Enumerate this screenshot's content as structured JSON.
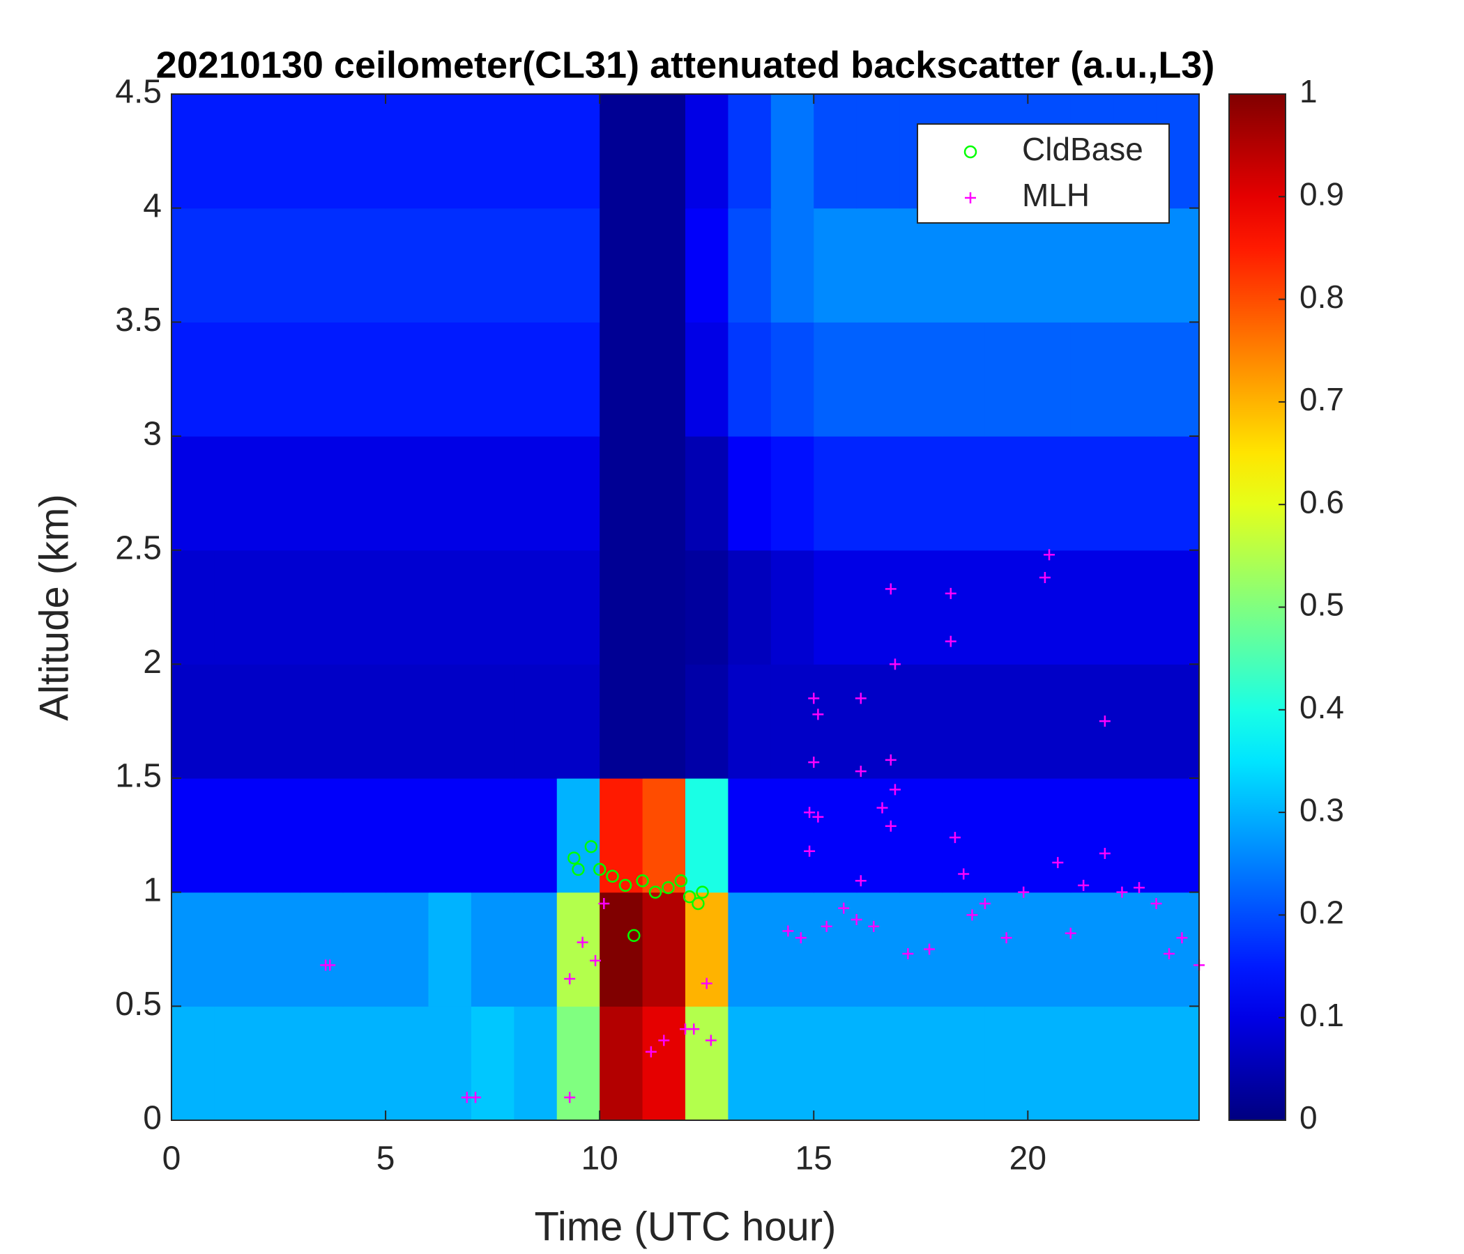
{
  "chart_data": {
    "type": "heatmap",
    "title": "20210130 ceilometer(CL31) attenuated backscatter (a.u.,L3)",
    "x_label": "Time (UTC hour)",
    "y_label": "Altitude (km)",
    "xlim": [
      0,
      24
    ],
    "ylim": [
      0,
      4.5
    ],
    "clim": [
      0,
      1
    ],
    "xticks": [
      0,
      5,
      10,
      15,
      20
    ],
    "yticks": [
      0,
      0.5,
      1,
      1.5,
      2,
      2.5,
      3,
      3.5,
      4,
      4.5
    ],
    "cticks": [
      0,
      0.1,
      0.2,
      0.3,
      0.4,
      0.5,
      0.6,
      0.7,
      0.8,
      0.9,
      1
    ],
    "colormap": "jet",
    "legend_position": "upper right",
    "x": [
      0.5,
      1.5,
      2.5,
      3.5,
      4.5,
      5.5,
      6.5,
      7.5,
      8.5,
      9.5,
      10.5,
      11.5,
      12.5,
      13.5,
      14.5,
      15.5,
      16.5,
      17.5,
      18.5,
      19.5,
      20.5,
      21.5,
      22.5,
      23.5
    ],
    "y": [
      0.25,
      0.75,
      1.25,
      1.75,
      2.25,
      2.75,
      3.25,
      3.75,
      4.25
    ],
    "z": [
      [
        0.3,
        0.3,
        0.3,
        0.3,
        0.3,
        0.3,
        0.3,
        0.32,
        0.3,
        0.5,
        0.95,
        0.9,
        0.55,
        0.3,
        0.3,
        0.3,
        0.3,
        0.3,
        0.3,
        0.3,
        0.3,
        0.3,
        0.3,
        0.3
      ],
      [
        0.27,
        0.27,
        0.27,
        0.27,
        0.27,
        0.27,
        0.3,
        0.27,
        0.27,
        0.55,
        1,
        0.95,
        0.7,
        0.27,
        0.27,
        0.27,
        0.27,
        0.27,
        0.27,
        0.27,
        0.27,
        0.27,
        0.27,
        0.27
      ],
      [
        0.12,
        0.12,
        0.12,
        0.12,
        0.12,
        0.12,
        0.12,
        0.12,
        0.12,
        0.3,
        0.85,
        0.8,
        0.4,
        0.12,
        0.12,
        0.12,
        0.12,
        0.12,
        0.12,
        0.12,
        0.12,
        0.12,
        0.12,
        0.12
      ],
      [
        0.07,
        0.07,
        0.07,
        0.07,
        0.07,
        0.07,
        0.07,
        0.07,
        0.07,
        0.07,
        0.02,
        0.02,
        0.04,
        0.07,
        0.07,
        0.07,
        0.07,
        0.07,
        0.07,
        0.07,
        0.07,
        0.07,
        0.07,
        0.07
      ],
      [
        0.08,
        0.08,
        0.08,
        0.08,
        0.08,
        0.08,
        0.08,
        0.08,
        0.08,
        0.08,
        0.02,
        0.02,
        0.03,
        0.06,
        0.08,
        0.1,
        0.1,
        0.1,
        0.1,
        0.1,
        0.1,
        0.1,
        0.1,
        0.1
      ],
      [
        0.1,
        0.1,
        0.1,
        0.1,
        0.1,
        0.1,
        0.1,
        0.1,
        0.1,
        0.1,
        0.02,
        0.02,
        0.05,
        0.12,
        0.14,
        0.16,
        0.16,
        0.16,
        0.16,
        0.16,
        0.16,
        0.16,
        0.16,
        0.16
      ],
      [
        0.15,
        0.15,
        0.15,
        0.15,
        0.15,
        0.15,
        0.15,
        0.15,
        0.15,
        0.15,
        0.02,
        0.02,
        0.1,
        0.18,
        0.2,
        0.22,
        0.22,
        0.22,
        0.22,
        0.22,
        0.22,
        0.22,
        0.22,
        0.22
      ],
      [
        0.17,
        0.17,
        0.17,
        0.17,
        0.17,
        0.17,
        0.17,
        0.17,
        0.17,
        0.17,
        0.02,
        0.02,
        0.12,
        0.2,
        0.24,
        0.26,
        0.26,
        0.26,
        0.26,
        0.26,
        0.26,
        0.26,
        0.26,
        0.26
      ],
      [
        0.15,
        0.15,
        0.15,
        0.15,
        0.15,
        0.15,
        0.15,
        0.15,
        0.15,
        0.15,
        0.02,
        0.02,
        0.1,
        0.18,
        0.24,
        0.2,
        0.2,
        0.2,
        0.2,
        0.2,
        0.2,
        0.2,
        0.2,
        0.2
      ]
    ],
    "series": [
      {
        "name": "CldBase",
        "color": "#00ff00",
        "marker": "circle",
        "x": [
          9.4,
          9.5,
          9.8,
          10,
          10.3,
          10.6,
          10.8,
          11,
          11.3,
          11.6,
          11.9,
          12.1,
          12.3,
          12.4
        ],
        "values": [
          1.15,
          1.1,
          1.2,
          1.1,
          1.07,
          1.03,
          0.81,
          1.05,
          1,
          1.02,
          1.05,
          0.98,
          0.95,
          1
        ]
      },
      {
        "name": "MLH",
        "color": "#ff00ff",
        "marker": "plus",
        "x": [
          3.6,
          3.7,
          6.9,
          7.1,
          9.3,
          9.3,
          9.6,
          9.9,
          10.1,
          11.5,
          11.2,
          12,
          12.2,
          12.6,
          12.5,
          14.4,
          14.7,
          15,
          15,
          14.9,
          15.1,
          14.9,
          15.1,
          15.3,
          15.7,
          16,
          16.1,
          16.1,
          16.1,
          16.4,
          16.6,
          16.8,
          16.8,
          16.9,
          16.9,
          16.8,
          17.2,
          17.7,
          18.2,
          18.2,
          18.3,
          18.5,
          18.7,
          19,
          19.5,
          19.9,
          20.4,
          20.5,
          20.7,
          21,
          21.3,
          21.8,
          21.8,
          22.2,
          22.6,
          23,
          23.3,
          23.6,
          24
        ],
        "values": [
          0.68,
          0.68,
          0.1,
          0.1,
          0.1,
          0.62,
          0.78,
          0.7,
          0.95,
          0.35,
          0.3,
          0.4,
          0.4,
          0.35,
          0.6,
          0.83,
          0.8,
          1.85,
          1.57,
          1.35,
          1.33,
          1.18,
          1.78,
          0.85,
          0.93,
          0.88,
          1.85,
          1.53,
          1.05,
          0.85,
          1.37,
          1.58,
          1.29,
          1.45,
          2,
          2.33,
          0.73,
          0.75,
          2.31,
          2.1,
          1.24,
          1.08,
          0.9,
          0.95,
          0.8,
          1,
          2.38,
          2.48,
          1.13,
          0.82,
          1.03,
          1.75,
          1.17,
          1,
          1.02,
          0.95,
          0.73,
          0.8,
          0.68
        ]
      }
    ]
  }
}
